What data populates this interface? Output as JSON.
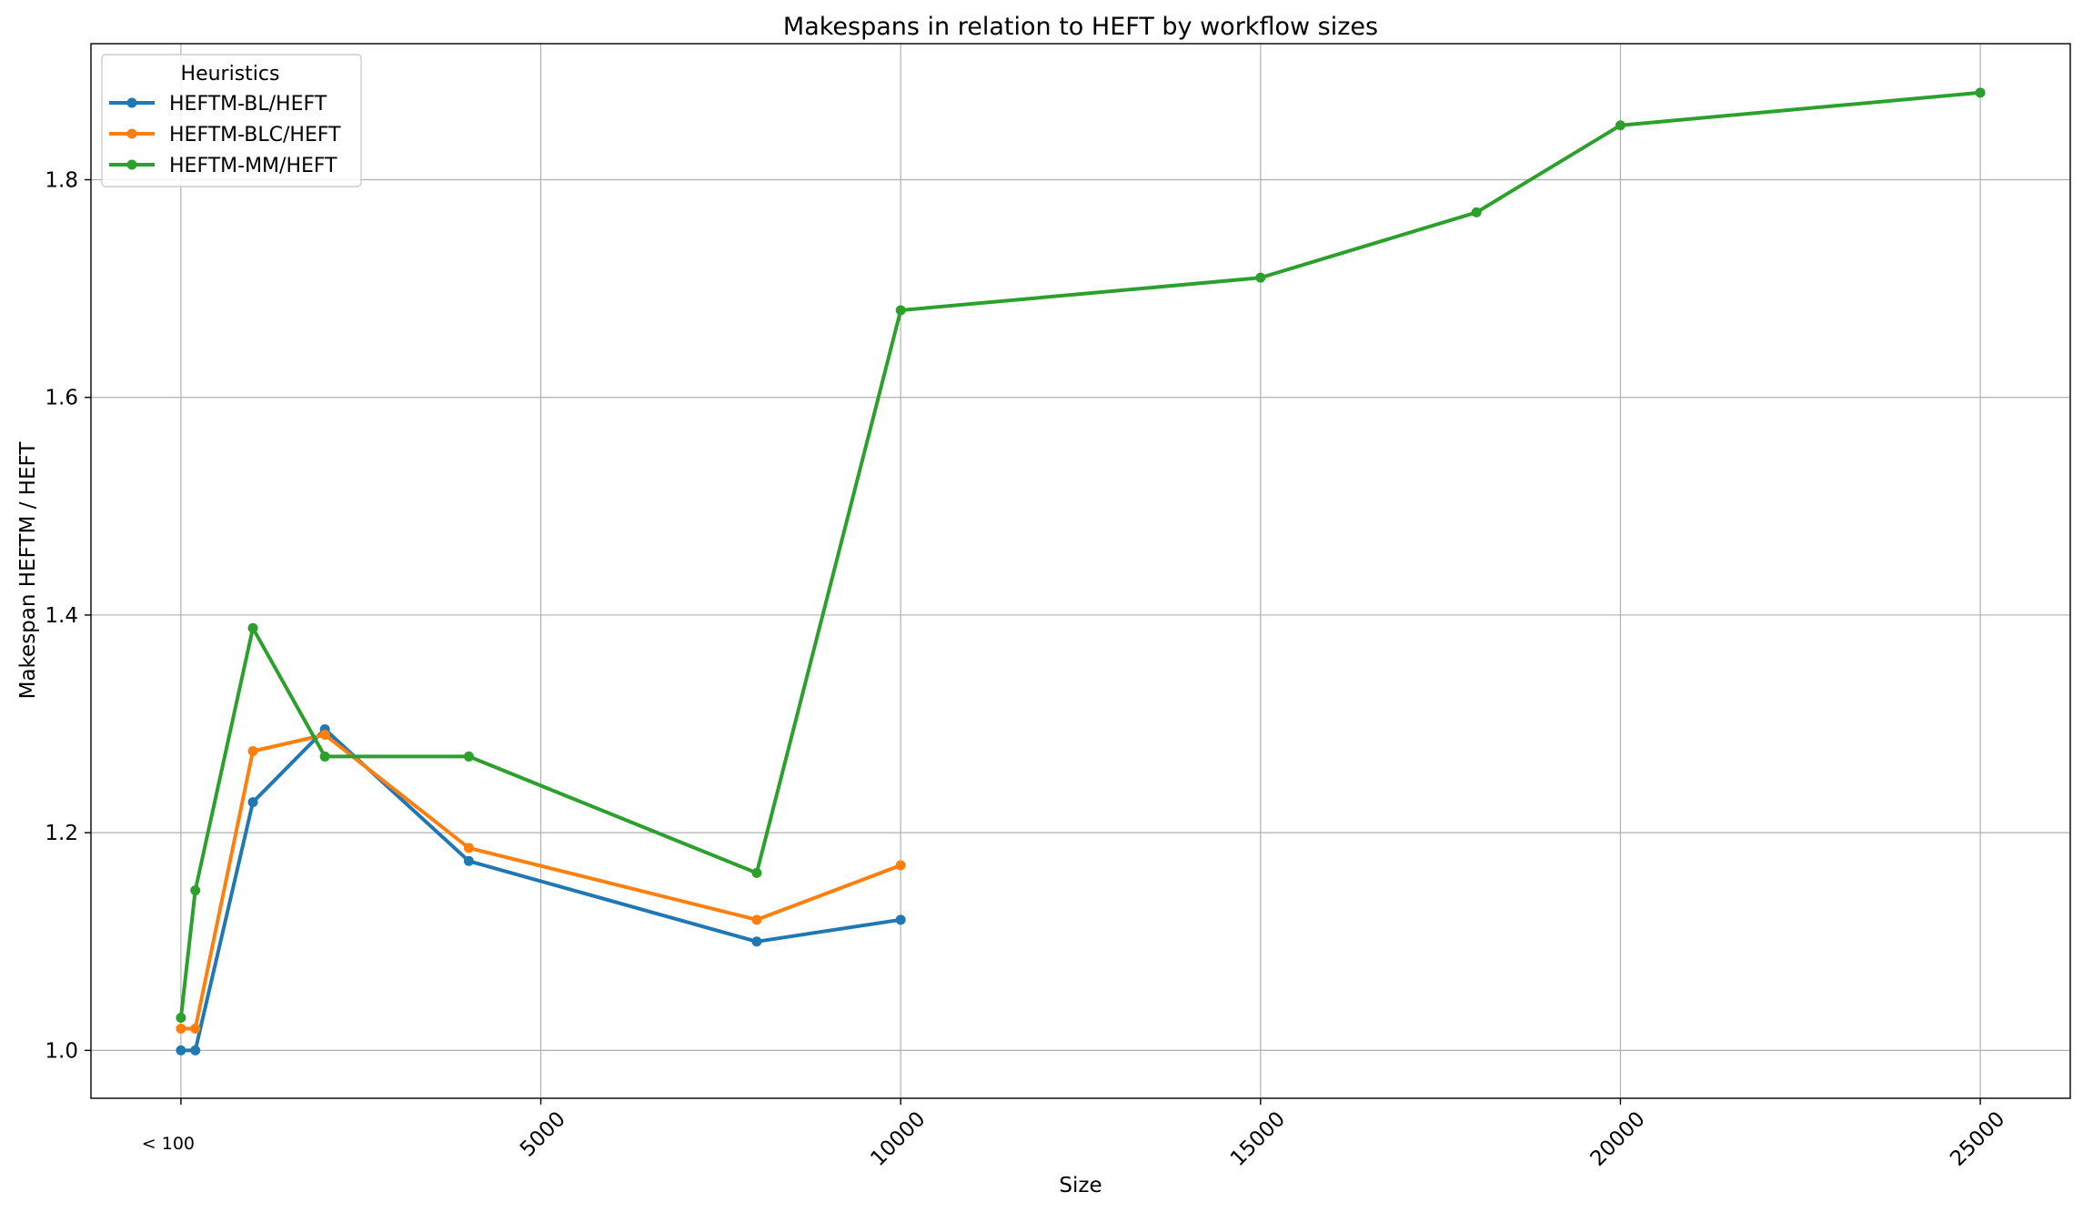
{
  "chart_data": {
    "type": "line",
    "title": "Makespans in relation to HEFT by workflow sizes",
    "xlabel": "Size",
    "ylabel": "Makespan HEFTM / HEFT",
    "xlim": [
      -1250,
      26250
    ],
    "ylim": [
      0.956,
      1.925
    ],
    "grid": true,
    "legend": {
      "title": "Heuristics",
      "position": "top-left"
    },
    "x_ticks": [
      {
        "value": 0,
        "label": "< 100",
        "rotated": false
      },
      {
        "value": 5000,
        "label": "5000",
        "rotated": true
      },
      {
        "value": 10000,
        "label": "10000",
        "rotated": true
      },
      {
        "value": 15000,
        "label": "15000",
        "rotated": true
      },
      {
        "value": 20000,
        "label": "20000",
        "rotated": true
      },
      {
        "value": 25000,
        "label": "25000",
        "rotated": true
      }
    ],
    "y_ticks": [
      {
        "value": 1.0,
        "label": "1.0"
      },
      {
        "value": 1.2,
        "label": "1.2"
      },
      {
        "value": 1.4,
        "label": "1.4"
      },
      {
        "value": 1.6,
        "label": "1.6"
      },
      {
        "value": 1.8,
        "label": "1.8"
      }
    ],
    "series": [
      {
        "name": "HEFTM-BL/HEFT",
        "color": "#1f77b4",
        "x": [
          0,
          200,
          1000,
          2000,
          4000,
          8000,
          10000
        ],
        "y": [
          1.0,
          1.0,
          1.228,
          1.295,
          1.174,
          1.1,
          1.12
        ]
      },
      {
        "name": "HEFTM-BLC/HEFT",
        "color": "#ff7f0e",
        "x": [
          0,
          200,
          1000,
          2000,
          4000,
          8000,
          10000
        ],
        "y": [
          1.02,
          1.02,
          1.275,
          1.29,
          1.186,
          1.12,
          1.17
        ]
      },
      {
        "name": "HEFTM-MM/HEFT",
        "color": "#2ca02c",
        "x": [
          0,
          200,
          1000,
          2000,
          4000,
          8000,
          10000,
          15000,
          18000,
          20000,
          25000
        ],
        "y": [
          1.03,
          1.147,
          1.388,
          1.27,
          1.27,
          1.163,
          1.68,
          1.71,
          1.77,
          1.85,
          1.88
        ]
      }
    ]
  }
}
